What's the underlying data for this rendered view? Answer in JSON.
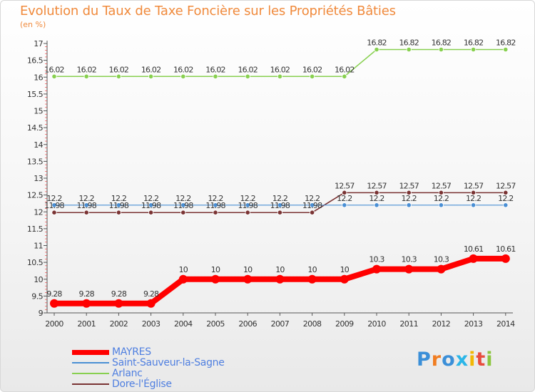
{
  "chart_data": {
    "type": "line",
    "title": "Evolution du Taux de Taxe Foncière sur les Propriétés Bâties",
    "subtitle": "(en %)",
    "ylim": [
      9,
      17
    ],
    "y_ticks": [
      "9",
      "9.5",
      "10",
      "10.5",
      "11",
      "11.5",
      "12",
      "12.5",
      "13",
      "13.5",
      "14",
      "14.5",
      "15",
      "15.5",
      "16",
      "16.5",
      "17"
    ],
    "y_tick_values": [
      9,
      9.5,
      10,
      10.5,
      11,
      11.5,
      12,
      12.5,
      13,
      13.5,
      14,
      14.5,
      15,
      15.5,
      16,
      16.5,
      17
    ],
    "categories": [
      "2000",
      "2001",
      "2002",
      "2003",
      "2004",
      "2005",
      "2006",
      "2007",
      "2008",
      "2009",
      "2010",
      "2011",
      "2012",
      "2013",
      "2014"
    ],
    "series": [
      {
        "name": "MAYRES",
        "color": "#ff0000",
        "values": [
          9.28,
          9.28,
          9.28,
          9.28,
          10,
          10,
          10,
          10,
          10,
          10,
          10.3,
          10.3,
          10.3,
          10.61,
          10.61
        ],
        "labels": [
          "9.28",
          "9.28",
          "9.28",
          "9.28",
          "10",
          "10",
          "10",
          "10",
          "10",
          "10",
          "10.3",
          "10.3",
          "10.3",
          "10.61",
          "10.61"
        ]
      },
      {
        "name": "Saint-Sauveur-la-Sagne",
        "color": "#4a8fd4",
        "values": [
          12.2,
          12.2,
          12.2,
          12.2,
          12.2,
          12.2,
          12.2,
          12.2,
          12.2,
          12.2,
          12.2,
          12.2,
          12.2,
          12.2,
          12.2
        ],
        "labels": [
          "12.2",
          "12.2",
          "12.2",
          "12.2",
          "12.2",
          "12.2",
          "12.2",
          "12.2",
          "12.2",
          "12.2",
          "12.2",
          "12.2",
          "12.2",
          "12.2",
          "12.2"
        ]
      },
      {
        "name": "Arlanc",
        "color": "#88d050",
        "values": [
          16.02,
          16.02,
          16.02,
          16.02,
          16.02,
          16.02,
          16.02,
          16.02,
          16.02,
          16.02,
          16.82,
          16.82,
          16.82,
          16.82,
          16.82
        ],
        "labels": [
          "16.02",
          "16.02",
          "16.02",
          "16.02",
          "16.02",
          "16.02",
          "16.02",
          "16.02",
          "16.02",
          "16.02",
          "16.82",
          "16.82",
          "16.82",
          "16.82",
          "16.82"
        ]
      },
      {
        "name": "Dore-l'Église",
        "color": "#7a3333",
        "values": [
          11.98,
          11.98,
          11.98,
          11.98,
          11.98,
          11.98,
          11.98,
          11.98,
          11.98,
          12.57,
          12.57,
          12.57,
          12.57,
          12.57,
          12.57
        ],
        "labels": [
          "11.98",
          "11.98",
          "11.98",
          "11.98",
          "11.98",
          "11.98",
          "11.98",
          "11.98",
          "11.98",
          "12.57",
          "12.57",
          "12.57",
          "12.57",
          "12.57",
          "12.57"
        ]
      }
    ],
    "grid": false,
    "legend_position": "bottom-left"
  },
  "logo": {
    "text": "Proxiti",
    "letters": [
      "P",
      "r",
      "o",
      "x",
      "i",
      "t",
      "i"
    ],
    "colors": [
      "#3b8fd8",
      "#f07d22",
      "#3b8fd8",
      "#2bb6e8",
      "#f2b705",
      "#e84c3d",
      "#8cc63f"
    ]
  }
}
